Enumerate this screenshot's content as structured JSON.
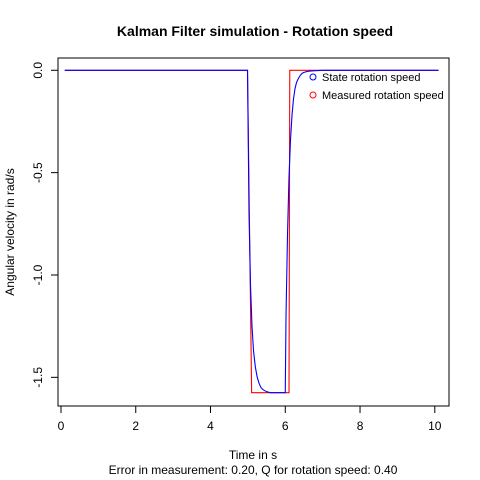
{
  "chart_data": {
    "type": "line",
    "title": "Kalman Filter simulation - Rotation speed",
    "xlabel": "Time in s",
    "ylabel": "Angular velocity in rad/s",
    "subtitle": "Error in measurement: 0.20, Q for rotation speed: 0.40",
    "xlim": [
      -0.08,
      10.38
    ],
    "ylim": [
      -1.64,
      0.06
    ],
    "x_ticks": [
      0,
      2,
      4,
      6,
      8,
      10
    ],
    "x_tick_labels": [
      "0",
      "2",
      "4",
      "6",
      "8",
      "10"
    ],
    "y_ticks": [
      0.0,
      -0.5,
      -1.0,
      -1.5
    ],
    "y_tick_labels": [
      "0.0",
      "-0.5",
      "-1.0",
      "-1.5"
    ],
    "grid": false,
    "legend_position": "top-right",
    "series": [
      {
        "name": "State rotation speed",
        "color": "#0000ff",
        "x": [
          0.1,
          4.99,
          5.03,
          5.07,
          5.11,
          5.15,
          5.2,
          5.25,
          5.3,
          5.35,
          5.4,
          5.5,
          5.6,
          5.7,
          5.8,
          5.9,
          6.0,
          6.02,
          6.06,
          6.1,
          6.14,
          6.18,
          6.22,
          6.26,
          6.3,
          6.35,
          6.4,
          6.45,
          6.5,
          6.6,
          6.7,
          6.8,
          7.0,
          8.0,
          9.0,
          10.1
        ],
        "y": [
          0.0,
          0.0,
          -0.7,
          -1.05,
          -1.25,
          -1.37,
          -1.45,
          -1.5,
          -1.53,
          -1.55,
          -1.56,
          -1.57,
          -1.575,
          -1.575,
          -1.575,
          -1.575,
          -1.575,
          -1.2,
          -0.8,
          -0.52,
          -0.34,
          -0.22,
          -0.14,
          -0.09,
          -0.06,
          -0.04,
          -0.025,
          -0.015,
          -0.01,
          -0.005,
          -0.003,
          -0.002,
          0.0,
          0.0,
          0.0,
          0.0
        ]
      },
      {
        "name": "Measured rotation speed",
        "color": "#ff0000",
        "x": [
          0.1,
          4.99,
          5.1,
          6.1,
          6.12,
          10.1
        ],
        "y": [
          0.0,
          0.0,
          -1.575,
          -1.575,
          0.0,
          0.0
        ]
      }
    ]
  }
}
